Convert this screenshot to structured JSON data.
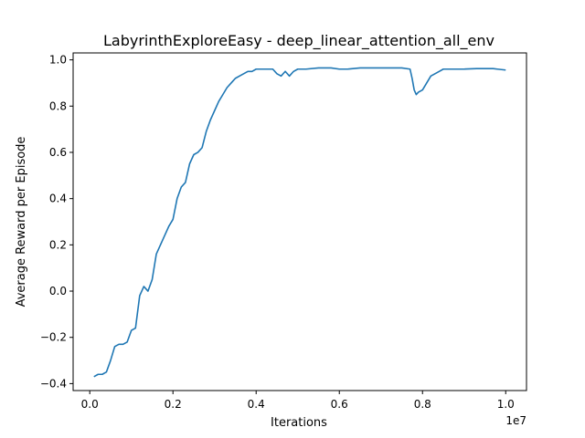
{
  "chart_data": {
    "type": "line",
    "title": "LabyrinthExploreEasy - deep_linear_attention_all_env",
    "xlabel": "Iterations",
    "ylabel": "Average Reward per Episode",
    "x_offset_label": "1e7",
    "xlim": [
      -0.04,
      1.05
    ],
    "ylim": [
      -0.43,
      1.03
    ],
    "grid": false,
    "x_ticks": [
      0.0,
      0.2,
      0.4,
      0.6,
      0.8,
      1.0
    ],
    "x_tick_labels": [
      "0.0",
      "0.2",
      "0.4",
      "0.6",
      "0.8",
      "1.0"
    ],
    "y_ticks": [
      -0.4,
      -0.2,
      0.0,
      0.2,
      0.4,
      0.6,
      0.8,
      1.0
    ],
    "y_tick_labels": [
      "−0.4",
      "−0.2",
      "0.0",
      "0.2",
      "0.4",
      "0.6",
      "0.8",
      "1.0"
    ],
    "series": [
      {
        "color": "#1f77b4",
        "x": [
          0.01,
          0.02,
          0.03,
          0.04,
          0.05,
          0.06,
          0.07,
          0.08,
          0.09,
          0.1,
          0.11,
          0.12,
          0.13,
          0.14,
          0.15,
          0.16,
          0.17,
          0.18,
          0.19,
          0.2,
          0.21,
          0.22,
          0.23,
          0.24,
          0.25,
          0.26,
          0.27,
          0.28,
          0.29,
          0.3,
          0.31,
          0.32,
          0.33,
          0.34,
          0.35,
          0.36,
          0.37,
          0.38,
          0.39,
          0.4,
          0.42,
          0.44,
          0.45,
          0.46,
          0.47,
          0.48,
          0.49,
          0.5,
          0.52,
          0.55,
          0.58,
          0.6,
          0.62,
          0.65,
          0.68,
          0.7,
          0.72,
          0.75,
          0.77,
          0.775,
          0.78,
          0.785,
          0.79,
          0.8,
          0.81,
          0.82,
          0.83,
          0.84,
          0.85,
          0.87,
          0.9,
          0.93,
          0.95,
          0.97,
          0.98,
          0.99,
          1.0
        ],
        "y": [
          -0.37,
          -0.36,
          -0.36,
          -0.35,
          -0.3,
          -0.24,
          -0.23,
          -0.23,
          -0.22,
          -0.17,
          -0.16,
          -0.02,
          0.02,
          0.0,
          0.05,
          0.16,
          0.2,
          0.24,
          0.28,
          0.31,
          0.4,
          0.45,
          0.47,
          0.55,
          0.59,
          0.6,
          0.62,
          0.69,
          0.74,
          0.78,
          0.82,
          0.85,
          0.88,
          0.9,
          0.92,
          0.93,
          0.94,
          0.95,
          0.95,
          0.96,
          0.96,
          0.96,
          0.94,
          0.93,
          0.95,
          0.93,
          0.95,
          0.96,
          0.96,
          0.965,
          0.965,
          0.96,
          0.96,
          0.965,
          0.965,
          0.965,
          0.965,
          0.965,
          0.96,
          0.92,
          0.87,
          0.85,
          0.86,
          0.87,
          0.9,
          0.93,
          0.94,
          0.95,
          0.96,
          0.96,
          0.96,
          0.962,
          0.962,
          0.962,
          0.96,
          0.958,
          0.956
        ]
      }
    ]
  }
}
